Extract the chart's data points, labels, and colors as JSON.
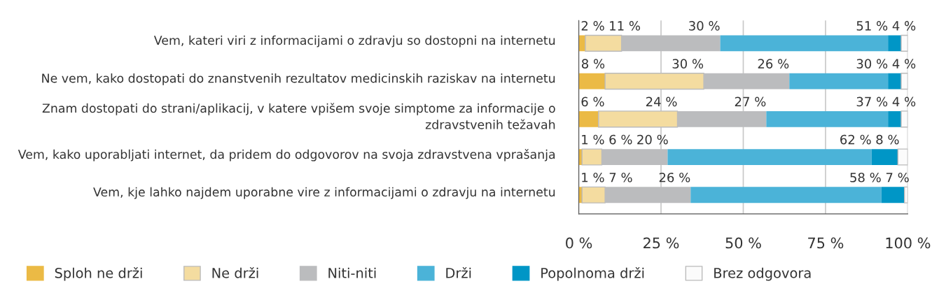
{
  "chart_data": {
    "type": "bar",
    "orientation": "horizontal",
    "stacked": true,
    "categories": [
      "Vem, kateri viri z informacijami o zdravju so dostopni na internetu",
      "Ne vem, kako dostopati do znanstvenih rezultatov medicinskih raziskav na internetu",
      "Znam dostopati do strani/aplikacij, v katere vpišem svoje simptome za informacije o zdravstvenih težavah",
      "Vem, kako uporabljati internet, da pridem do odgovorov na svoja zdravstvena vprašanja",
      "Vem, kje lahko najdem uporabne vire z informacijami o zdravju na internetu"
    ],
    "series": [
      {
        "name": "Sploh ne drži",
        "color": "#ebba45",
        "values": [
          2,
          8,
          6,
          1,
          1
        ],
        "value_labels": [
          "2 %",
          "8 %",
          "6 %",
          "1 %",
          "1 %"
        ]
      },
      {
        "name": "Ne drži",
        "color": "#f4dca0",
        "values": [
          11,
          30,
          24,
          6,
          7
        ],
        "value_labels": [
          "11 %",
          "30 %",
          "24 %",
          "6 %",
          "7 %"
        ]
      },
      {
        "name": "Niti-niti",
        "color": "#bbbcbe",
        "values": [
          30,
          26,
          27,
          20,
          26
        ],
        "value_labels": [
          "30 %",
          "26 %",
          "27 %",
          "20 %",
          "26 %"
        ]
      },
      {
        "name": "Drži",
        "color": "#4bb3d8",
        "values": [
          51,
          30,
          37,
          62,
          58
        ],
        "value_labels": [
          "51 %",
          "30 %",
          "37 %",
          "62 %",
          "58 %"
        ]
      },
      {
        "name": "Popolnoma drži",
        "color": "#0096c6",
        "values": [
          4,
          4,
          4,
          8,
          7
        ],
        "value_labels": [
          "4 %",
          "4 %",
          "4 %",
          "8 %",
          "7 %"
        ]
      },
      {
        "name": "Brez odgovora",
        "color": "#fbfbfb",
        "values": [
          2,
          2,
          2,
          3,
          1
        ],
        "value_labels": [
          null,
          null,
          null,
          null,
          null
        ]
      }
    ],
    "xlim": [
      0,
      100
    ],
    "xticks": [
      {
        "value": 0,
        "label": "0 %"
      },
      {
        "value": 25,
        "label": "25 %"
      },
      {
        "value": 50,
        "label": "50 %"
      },
      {
        "value": 75,
        "label": "75 %"
      },
      {
        "value": 100,
        "label": "100 %"
      }
    ],
    "grid": "x",
    "legend": "bottom"
  }
}
